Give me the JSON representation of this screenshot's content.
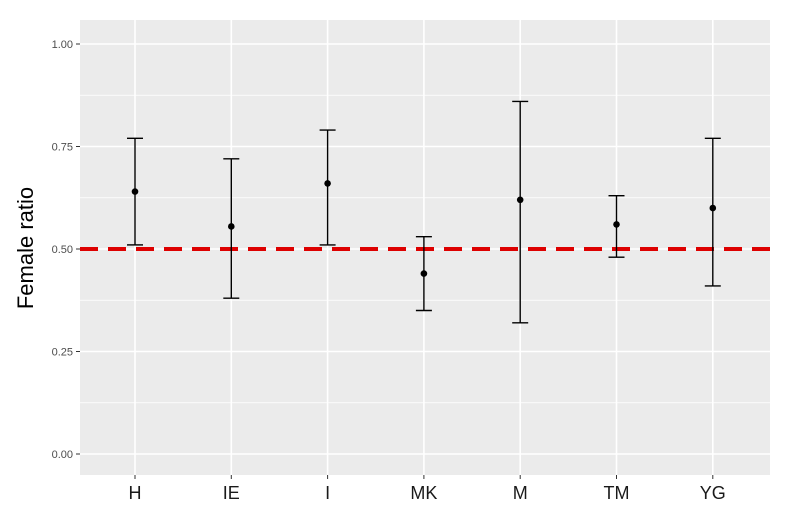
{
  "chart_data": {
    "type": "scatter",
    "title": "",
    "xlabel": "",
    "ylabel": "Female ratio",
    "categories": [
      "H",
      "IE",
      "I",
      "MK",
      "M",
      "TM",
      "YG"
    ],
    "points": [
      {
        "category": "H",
        "y": 0.64,
        "lower": 0.51,
        "upper": 0.77
      },
      {
        "category": "IE",
        "y": 0.555,
        "lower": 0.38,
        "upper": 0.72
      },
      {
        "category": "I",
        "y": 0.66,
        "lower": 0.51,
        "upper": 0.79
      },
      {
        "category": "MK",
        "y": 0.44,
        "lower": 0.35,
        "upper": 0.53
      },
      {
        "category": "M",
        "y": 0.62,
        "lower": 0.32,
        "upper": 0.86
      },
      {
        "category": "TM",
        "y": 0.56,
        "lower": 0.48,
        "upper": 0.63
      },
      {
        "category": "YG",
        "y": 0.6,
        "lower": 0.41,
        "upper": 0.77
      }
    ],
    "yticks": [
      "0.00",
      "0.25",
      "0.50",
      "0.75",
      "1.00"
    ],
    "ylim": [
      0,
      1
    ],
    "reference_line": {
      "y": 0.5,
      "style": "dashed",
      "color": "#dd0000"
    },
    "grid": true,
    "legend": "none",
    "colors": {
      "panel": "#ebebeb",
      "grid": "#ffffff",
      "points": "#000000",
      "reference": "#dd0000"
    }
  }
}
